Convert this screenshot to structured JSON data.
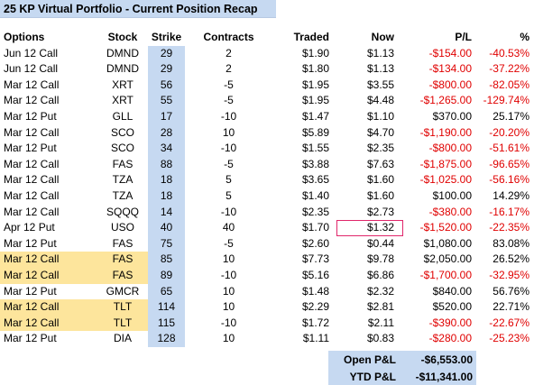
{
  "title": "25 KP Virtual Portfolio - Current Position Recap",
  "headers": {
    "options": "Options",
    "stock": "Stock",
    "strike": "Strike",
    "contracts": "Contracts",
    "traded": "Traded",
    "now": "Now",
    "pl": "P/L",
    "pct": "%"
  },
  "rows": [
    {
      "options": "Jun 12 Call",
      "stock": "DMND",
      "strike": "29",
      "contracts": "2",
      "traded": "$1.90",
      "now": "$1.13",
      "pl": "-$154.00",
      "pct": "-40.53%",
      "negative": true,
      "highlight": false
    },
    {
      "options": "Jun 12 Call",
      "stock": "DMND",
      "strike": "29",
      "contracts": "2",
      "traded": "$1.80",
      "now": "$1.13",
      "pl": "-$134.00",
      "pct": "-37.22%",
      "negative": true,
      "highlight": false
    },
    {
      "options": "Mar 12 Call",
      "stock": "XRT",
      "strike": "56",
      "contracts": "-5",
      "traded": "$1.95",
      "now": "$3.55",
      "pl": "-$800.00",
      "pct": "-82.05%",
      "negative": true,
      "highlight": false
    },
    {
      "options": "Mar 12 Call",
      "stock": "XRT",
      "strike": "55",
      "contracts": "-5",
      "traded": "$1.95",
      "now": "$4.48",
      "pl": "-$1,265.00",
      "pct": "-129.74%",
      "negative": true,
      "highlight": false
    },
    {
      "options": "Mar 12 Put",
      "stock": "GLL",
      "strike": "17",
      "contracts": "-10",
      "traded": "$1.47",
      "now": "$1.10",
      "pl": "$370.00",
      "pct": "25.17%",
      "negative": false,
      "highlight": false
    },
    {
      "options": "Mar 12 Call",
      "stock": "SCO",
      "strike": "28",
      "contracts": "10",
      "traded": "$5.89",
      "now": "$4.70",
      "pl": "-$1,190.00",
      "pct": "-20.20%",
      "negative": true,
      "highlight": false
    },
    {
      "options": "Mar 12 Put",
      "stock": "SCO",
      "strike": "34",
      "contracts": "-10",
      "traded": "$1.55",
      "now": "$2.35",
      "pl": "-$800.00",
      "pct": "-51.61%",
      "negative": true,
      "highlight": false
    },
    {
      "options": "Mar 12 Call",
      "stock": "FAS",
      "strike": "88",
      "contracts": "-5",
      "traded": "$3.88",
      "now": "$7.63",
      "pl": "-$1,875.00",
      "pct": "-96.65%",
      "negative": true,
      "highlight": false
    },
    {
      "options": "Mar 12 Call",
      "stock": "TZA",
      "strike": "18",
      "contracts": "5",
      "traded": "$3.65",
      "now": "$1.60",
      "pl": "-$1,025.00",
      "pct": "-56.16%",
      "negative": true,
      "highlight": false
    },
    {
      "options": "Mar 12 Call",
      "stock": "TZA",
      "strike": "18",
      "contracts": "5",
      "traded": "$1.40",
      "now": "$1.60",
      "pl": "$100.00",
      "pct": "14.29%",
      "negative": false,
      "highlight": false
    },
    {
      "options": "Mar 12 Call",
      "stock": "SQQQ",
      "strike": "14",
      "contracts": "-10",
      "traded": "$2.35",
      "now": "$2.73",
      "pl": "-$380.00",
      "pct": "-16.17%",
      "negative": true,
      "highlight": false
    },
    {
      "options": "Apr 12 Put",
      "stock": "USO",
      "strike": "40",
      "contracts": "40",
      "traded": "$1.70",
      "now": "$1.32",
      "pl": "-$1,520.00",
      "pct": "-22.35%",
      "negative": true,
      "highlight": false,
      "boxed_now": true
    },
    {
      "options": "Mar 12 Put",
      "stock": "FAS",
      "strike": "75",
      "contracts": "-5",
      "traded": "$2.60",
      "now": "$0.44",
      "pl": "$1,080.00",
      "pct": "83.08%",
      "negative": false,
      "highlight": false
    },
    {
      "options": "Mar 12 Call",
      "stock": "FAS",
      "strike": "85",
      "contracts": "10",
      "traded": "$7.73",
      "now": "$9.78",
      "pl": "$2,050.00",
      "pct": "26.52%",
      "negative": false,
      "highlight": true
    },
    {
      "options": "Mar 12 Call",
      "stock": "FAS",
      "strike": "89",
      "contracts": "-10",
      "traded": "$5.16",
      "now": "$6.86",
      "pl": "-$1,700.00",
      "pct": "-32.95%",
      "negative": true,
      "highlight": true
    },
    {
      "options": "Mar 12 Put",
      "stock": "GMCR",
      "strike": "65",
      "contracts": "10",
      "traded": "$1.48",
      "now": "$2.32",
      "pl": "$840.00",
      "pct": "56.76%",
      "negative": false,
      "highlight": false
    },
    {
      "options": "Mar 12 Call",
      "stock": "TLT",
      "strike": "114",
      "contracts": "10",
      "traded": "$2.29",
      "now": "$2.81",
      "pl": "$520.00",
      "pct": "22.71%",
      "negative": false,
      "highlight": true
    },
    {
      "options": "Mar 12 Call",
      "stock": "TLT",
      "strike": "115",
      "contracts": "-10",
      "traded": "$1.72",
      "now": "$2.11",
      "pl": "-$390.00",
      "pct": "-22.67%",
      "negative": true,
      "highlight": true
    },
    {
      "options": "Mar 12 Put",
      "stock": "DIA",
      "strike": "128",
      "contracts": "10",
      "traded": "$1.11",
      "now": "$0.83",
      "pl": "-$280.00",
      "pct": "-25.23%",
      "negative": true,
      "highlight": false
    }
  ],
  "summary": {
    "open_label": "Open P&L",
    "open_value": "-$6,553.00",
    "ytd_label": "YTD P&L",
    "ytd_value": "-$11,341.00"
  },
  "colors": {
    "header_bg": "#c6d9f1",
    "strike_bg": "#c6d9f1",
    "highlight_bg": "#fde59c",
    "negative_text": "#e00000",
    "box_border": "#e0266a"
  }
}
